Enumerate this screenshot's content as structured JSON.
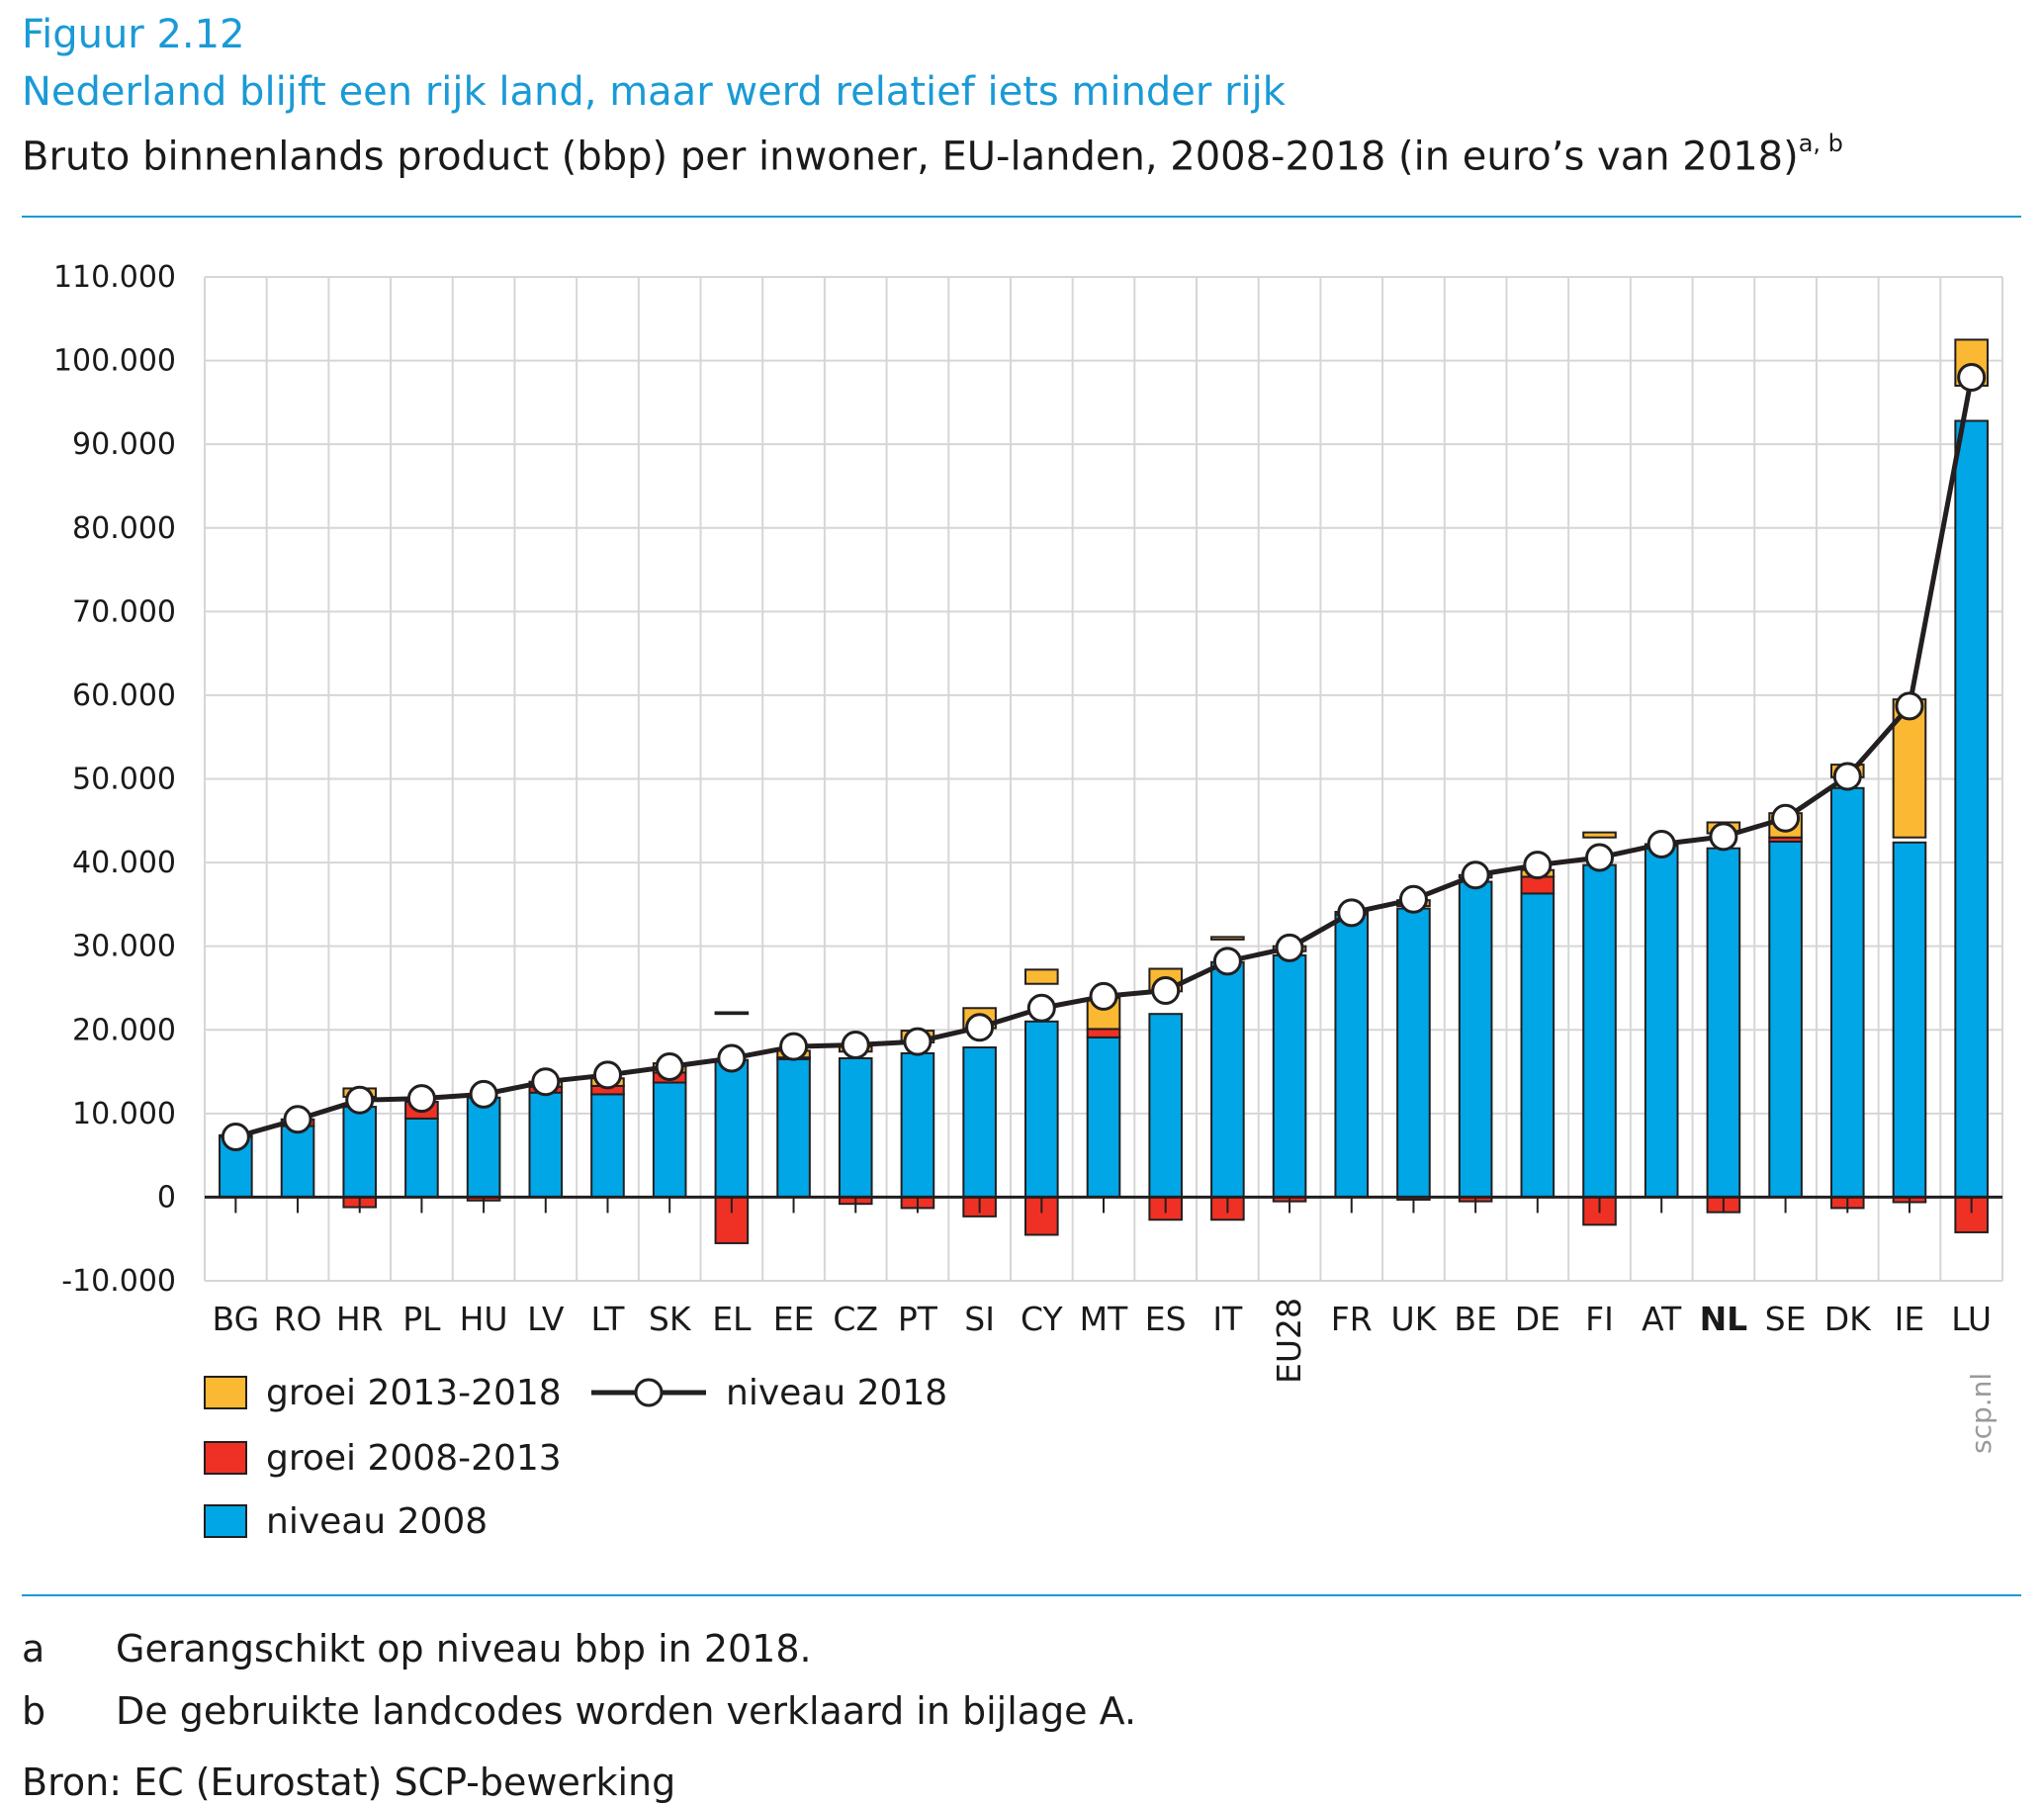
{
  "header": {
    "figure_label": "Figuur 2.12",
    "title": "Nederland blijft een rijk land, maar werd relatief iets minder rijk",
    "subtitle": "Bruto binnenlands product (bbp) per inwoner, EU-landen, 2008-2018 (in euro’s van 2018)",
    "subtitle_sup": "a, b"
  },
  "chart_data": {
    "type": "bar",
    "title": "",
    "xlabel": "",
    "ylabel": "",
    "ylim": [
      -10000,
      110000
    ],
    "yticks": [
      -10000,
      0,
      10000,
      20000,
      30000,
      40000,
      50000,
      60000,
      70000,
      80000,
      90000,
      100000,
      110000
    ],
    "ytick_labels": [
      "-10.000",
      "0",
      "10.000",
      "20.000",
      "30.000",
      "40.000",
      "50.000",
      "60.000",
      "70.000",
      "80.000",
      "90.000",
      "100.000",
      "110.000"
    ],
    "grid": true,
    "categories": [
      "BG",
      "RO",
      "HR",
      "PL",
      "HU",
      "LV",
      "LT",
      "SK",
      "EL",
      "EE",
      "CZ",
      "PT",
      "SI",
      "CY",
      "MT",
      "ES",
      "IT",
      "EU28",
      "FR",
      "UK",
      "BE",
      "DE",
      "FI",
      "AT",
      "NL",
      "SE",
      "DK",
      "IE",
      "LU"
    ],
    "highlight_category": "NL",
    "series": [
      {
        "name": "niveau 2008",
        "color": "#00a6e6",
        "values": [
          7200,
          8500,
          12000,
          9400,
          12300,
          12500,
          12300,
          13700,
          21900,
          16500,
          17400,
          18500,
          20200,
          25500,
          19100,
          24600,
          30800,
          29400,
          33800,
          34800,
          38200,
          36300,
          43000,
          42000,
          43500,
          42500,
          50200,
          43000,
          97000
        ]
      },
      {
        "name": "groei 2008-2013",
        "color": "#ee3124",
        "values": [
          200,
          800,
          -1200,
          2000,
          -400,
          700,
          1000,
          1200,
          -5500,
          200,
          -800,
          -1300,
          -2300,
          -4500,
          1000,
          -2700,
          -2700,
          -500,
          300,
          -300,
          -500,
          2000,
          -3300,
          200,
          -1800,
          500,
          -1300,
          -600,
          -4200
        ]
      },
      {
        "name": "groei 2013-2018",
        "color": "#fbb933",
        "values": [
          0,
          0,
          1000,
          0,
          0,
          600,
          900,
          1100,
          200,
          800,
          600,
          1400,
          2400,
          1700,
          3700,
          2700,
          300,
          600,
          0,
          700,
          300,
          800,
          600,
          0,
          1300,
          2900,
          1500,
          16500,
          5500
        ]
      },
      {
        "name": "niveau 2018",
        "color": "#231f20",
        "values": [
          7200,
          9300,
          11600,
          11800,
          12300,
          13800,
          14600,
          15600,
          16600,
          18000,
          18200,
          18600,
          20300,
          22600,
          24000,
          24700,
          28200,
          29800,
          34000,
          35600,
          38500,
          39700,
          40600,
          42200,
          43100,
          45300,
          50300,
          58700,
          98000
        ]
      }
    ],
    "legend": {
      "placement": "bottom-left",
      "entries": [
        {
          "label": "groei 2013-2018",
          "color": "#fbb933"
        },
        {
          "label": "groei 2008-2013",
          "color": "#ee3124"
        },
        {
          "label": "niveau 2008",
          "color": "#00a6e6"
        },
        {
          "label": "niveau 2018",
          "color": "#231f20"
        }
      ]
    }
  },
  "credit": "scp.nl",
  "notes": [
    {
      "letter": "a",
      "text": "Gerangschikt op niveau bbp in 2018."
    },
    {
      "letter": "b",
      "text": "De gebruikte landcodes worden verklaard in bijlage A."
    }
  ],
  "source": "Bron: EC (Eurostat) SCP-bewerking"
}
